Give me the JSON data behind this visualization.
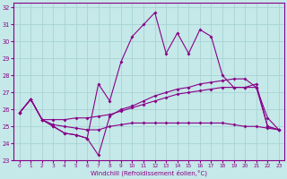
{
  "xlabel": "Windchill (Refroidissement éolien,°C)",
  "bg_color": "#c5e8e8",
  "grid_color": "#a8d4d4",
  "line_color": "#880088",
  "xlim": [
    -0.5,
    23.5
  ],
  "ylim": [
    23,
    32.3
  ],
  "xticks": [
    0,
    1,
    2,
    3,
    4,
    5,
    6,
    7,
    8,
    9,
    10,
    11,
    12,
    13,
    14,
    15,
    16,
    17,
    18,
    19,
    20,
    21,
    22,
    23
  ],
  "yticks": [
    23,
    24,
    25,
    26,
    27,
    28,
    29,
    30,
    31,
    32
  ],
  "line_jagged_x": [
    0,
    1,
    2,
    3,
    4,
    5,
    6,
    7,
    8,
    9,
    10,
    11,
    12,
    13,
    14,
    15,
    16,
    17,
    18,
    19,
    20,
    21,
    22,
    23
  ],
  "line_jagged_y": [
    25.8,
    26.6,
    25.4,
    25.0,
    24.6,
    24.5,
    24.3,
    27.5,
    26.5,
    28.8,
    30.3,
    31.0,
    31.7,
    29.3,
    30.5,
    29.3,
    30.7,
    30.3,
    28.0,
    27.3,
    27.3,
    27.5,
    25.0,
    24.8
  ],
  "line_upper_x": [
    0,
    1,
    2,
    3,
    4,
    5,
    6,
    7,
    8,
    9,
    10,
    11,
    12,
    13,
    14,
    15,
    16,
    17,
    18,
    19,
    20,
    21,
    22,
    23
  ],
  "line_upper_y": [
    25.8,
    26.6,
    25.4,
    25.4,
    25.4,
    25.5,
    25.5,
    25.6,
    25.7,
    25.9,
    26.1,
    26.3,
    26.5,
    26.7,
    26.9,
    27.0,
    27.1,
    27.2,
    27.3,
    27.3,
    27.3,
    27.3,
    25.5,
    24.8
  ],
  "line_lower_x": [
    0,
    1,
    2,
    3,
    4,
    5,
    6,
    7,
    8,
    9,
    10,
    11,
    12,
    13,
    14,
    15,
    16,
    17,
    18,
    19,
    20,
    21,
    22,
    23
  ],
  "line_lower_y": [
    25.8,
    26.6,
    25.4,
    25.1,
    25.0,
    24.9,
    24.8,
    24.8,
    25.0,
    25.1,
    25.2,
    25.2,
    25.2,
    25.2,
    25.2,
    25.2,
    25.2,
    25.2,
    25.2,
    25.1,
    25.0,
    25.0,
    24.9,
    24.8
  ],
  "line_v_x": [
    0,
    1,
    2,
    3,
    4,
    5,
    6,
    7,
    8,
    9,
    10,
    11,
    12,
    13,
    14,
    15,
    16,
    17,
    18,
    19,
    20,
    21,
    22,
    23
  ],
  "line_v_y": [
    25.8,
    26.6,
    25.4,
    25.0,
    24.6,
    24.5,
    24.3,
    23.3,
    25.6,
    26.0,
    26.2,
    26.5,
    26.8,
    27.0,
    27.2,
    27.3,
    27.5,
    27.6,
    27.7,
    27.8,
    27.8,
    27.3,
    25.0,
    24.8
  ]
}
